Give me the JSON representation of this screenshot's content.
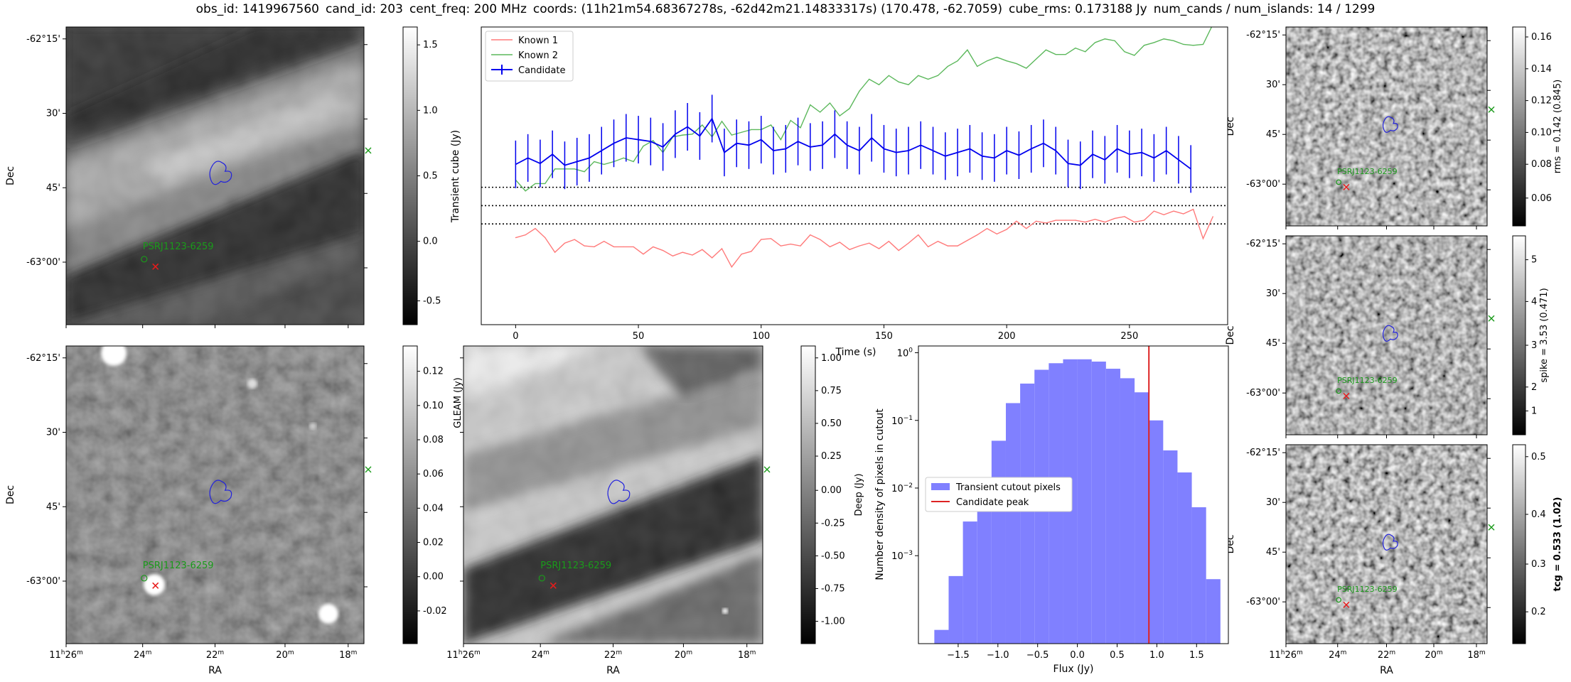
{
  "title": {
    "obs_id": "obs_id: 1419967560",
    "cand_id": "cand_id: 203",
    "cent_freq": "cent_freq: 200 MHz",
    "coords": "coords: (11h21m54.68367278s, -62d42m21.14833317s) (170.478, -62.7059)",
    "cube_rms": "cube_rms: 0.173188 Jy",
    "num_cands": "num_cands / num_islands: 14 / 1299"
  },
  "sky_axes": {
    "ra_label": "RA",
    "dec_label": "Dec",
    "ra_ticks": [
      "11h26m",
      "24m",
      "22m",
      "20m",
      "18m"
    ],
    "dec_ticks": [
      "-62°15'",
      "30'",
      "45'",
      "-63°00'"
    ]
  },
  "annotations": {
    "source_label": "PSRJ1123-6259",
    "colors": {
      "candidate_contour": "#2222dd",
      "source_marker": "#1a9a1a",
      "candidate_marker": "#e81b1b"
    }
  },
  "images": {
    "transient_std": {
      "colorbar_ticks": [
        "1.5",
        "1.0",
        "0.5",
        "0.0",
        "-0.5"
      ],
      "colorbar_label": ""
    },
    "deep_gleam": {
      "colorbar_ticks": [
        "0.12",
        "0.10",
        "0.08",
        "0.06",
        "0.04",
        "0.02",
        "0.00",
        "-0.02"
      ],
      "colorbar_label": ""
    },
    "deep": {
      "colorbar_ticks": [
        "1.00",
        "0.75",
        "0.50",
        "0.25",
        "0.00",
        "-0.25",
        "-0.50",
        "-0.75",
        "-1.00"
      ],
      "colorbar_label": "Deep (Jy)",
      "side_label": "GLEAM (Jy)"
    },
    "rms": {
      "colorbar_ticks": [
        "0.16",
        "0.14",
        "0.12",
        "0.10",
        "0.08",
        "0.06"
      ],
      "colorbar_label": "rms = 0.142 (0.845)"
    },
    "spike": {
      "colorbar_ticks": [
        "5",
        "4",
        "3",
        "2",
        "1"
      ],
      "colorbar_label": "spike = 3.53 (0.471)"
    },
    "tcg": {
      "colorbar_ticks": [
        "0.5",
        "0.4",
        "0.3",
        "0.2"
      ],
      "colorbar_label": "tcg = 0.533 (1.02)"
    }
  },
  "chart_data": [
    {
      "type": "line",
      "title": "",
      "xlabel": "Time (s)",
      "ylabel": "Transient cube (Jy)",
      "xlim": [
        -14,
        290
      ],
      "ylim": [
        -1.3,
        1.95
      ],
      "xticks": [
        0,
        50,
        100,
        150,
        200,
        250
      ],
      "hlines": [
        0.2,
        0.0,
        -0.2
      ],
      "legend_position": "upper-left",
      "series": [
        {
          "name": "Known 1",
          "color": "#ff7a7a",
          "x_start": 0,
          "x_step": 4,
          "values": [
            -0.35,
            -0.32,
            -0.25,
            -0.35,
            -0.51,
            -0.41,
            -0.37,
            -0.44,
            -0.45,
            -0.39,
            -0.45,
            -0.45,
            -0.45,
            -0.53,
            -0.45,
            -0.49,
            -0.55,
            -0.51,
            -0.54,
            -0.48,
            -0.57,
            -0.47,
            -0.67,
            -0.53,
            -0.5,
            -0.37,
            -0.36,
            -0.44,
            -0.42,
            -0.44,
            -0.32,
            -0.37,
            -0.45,
            -0.4,
            -0.48,
            -0.44,
            -0.41,
            -0.47,
            -0.39,
            -0.49,
            -0.41,
            -0.32,
            -0.45,
            -0.39,
            -0.44,
            -0.44,
            -0.38,
            -0.32,
            -0.25,
            -0.31,
            -0.26,
            -0.17,
            -0.25,
            -0.17,
            -0.19,
            -0.16,
            -0.16,
            -0.16,
            -0.18,
            -0.15,
            -0.18,
            -0.14,
            -0.12,
            -0.18,
            -0.16,
            -0.06,
            -0.1,
            -0.06,
            -0.09,
            -0.04,
            -0.36,
            -0.12
          ]
        },
        {
          "name": "Known 2",
          "color": "#5cb85c",
          "x_start": 0,
          "x_step": 4,
          "values": [
            0.28,
            0.16,
            0.24,
            0.24,
            0.4,
            0.4,
            0.4,
            0.37,
            0.48,
            0.45,
            0.48,
            0.52,
            0.48,
            0.65,
            0.71,
            0.58,
            0.75,
            0.77,
            0.78,
            0.88,
            0.75,
            0.92,
            0.77,
            0.8,
            0.83,
            0.83,
            0.88,
            0.72,
            0.93,
            0.85,
            1.1,
            1.02,
            1.12,
            0.98,
            1.06,
            1.25,
            1.38,
            1.32,
            1.42,
            1.35,
            1.32,
            1.42,
            1.38,
            1.42,
            1.52,
            1.58,
            1.7,
            1.52,
            1.58,
            1.62,
            1.58,
            1.55,
            1.5,
            1.6,
            1.7,
            1.65,
            1.65,
            1.72,
            1.68,
            1.78,
            1.82,
            1.8,
            1.68,
            1.64,
            1.75,
            1.78,
            1.82,
            1.8,
            1.76,
            1.75,
            1.76,
            1.98
          ]
        },
        {
          "name": "Candidate",
          "color": "#0000ee",
          "x_start": 0,
          "x_step": 5,
          "error": 0.26,
          "values": [
            0.45,
            0.52,
            0.46,
            0.56,
            0.44,
            0.48,
            0.52,
            0.6,
            0.68,
            0.74,
            0.72,
            0.7,
            0.64,
            0.78,
            0.86,
            0.76,
            0.95,
            0.58,
            0.68,
            0.66,
            0.72,
            0.6,
            0.62,
            0.7,
            0.64,
            0.66,
            0.78,
            0.66,
            0.6,
            0.74,
            0.62,
            0.58,
            0.6,
            0.66,
            0.6,
            0.54,
            0.58,
            0.62,
            0.54,
            0.52,
            0.6,
            0.55,
            0.62,
            0.68,
            0.6,
            0.46,
            0.44,
            0.56,
            0.5,
            0.62,
            0.56,
            0.58,
            0.52,
            0.6,
            0.5,
            0.4
          ]
        }
      ]
    },
    {
      "type": "bar",
      "title": "",
      "xlabel": "Flux (Jy)",
      "ylabel": "Number density of pixels in cutout",
      "xlim": [
        -2.0,
        1.9
      ],
      "ylim_log10": [
        -4.3,
        0.1
      ],
      "xticks": [
        -1.5,
        -1.0,
        -0.5,
        0.0,
        0.5,
        1.0,
        1.5
      ],
      "yticks_log10": [
        -3,
        -2,
        -1,
        0
      ],
      "bin_start": -1.8,
      "bin_width": 0.18,
      "series": [
        {
          "name": "Transient cutout pixels",
          "color": "#8080ff",
          "values": [
            8e-05,
            0.0005,
            0.0032,
            0.0085,
            0.05,
            0.18,
            0.35,
            0.56,
            0.7,
            0.8,
            0.8,
            0.74,
            0.58,
            0.42,
            0.26,
            0.1,
            0.036,
            0.017,
            0.0052,
            0.00045
          ]
        }
      ],
      "vline": {
        "name": "Candidate peak",
        "x": 0.9,
        "color": "#dd2222"
      },
      "legend_position": "center-left"
    }
  ]
}
